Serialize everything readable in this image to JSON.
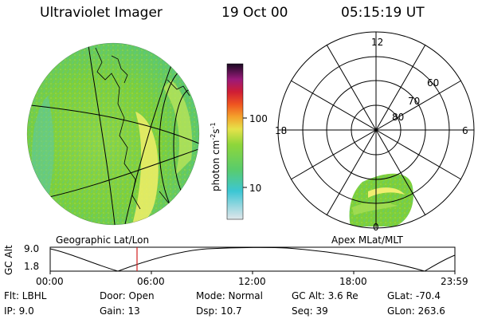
{
  "header": {
    "title": "Ultraviolet Imager",
    "date": "19 Oct 00",
    "time": "05:15:19 UT"
  },
  "colorbar": {
    "label_html": "photon cm-2s-1",
    "tick_labels": [
      "100",
      "10"
    ]
  },
  "left_map": {
    "caption": "Geographic Lat/Lon"
  },
  "polar_plot": {
    "caption": "Apex MLat/MLT",
    "mlt_labels": [
      "12",
      "18",
      "6",
      "0"
    ],
    "lat_labels": [
      "60",
      "70",
      "80"
    ]
  },
  "timeline": {
    "axis_label": "GC Alt",
    "y_labels": [
      "9.0",
      "1.8"
    ],
    "x_labels": [
      "00:00",
      "06:00",
      "12:00",
      "18:00",
      "23:59"
    ]
  },
  "info": {
    "row1": [
      "Flt: LBHL",
      "Door: Open",
      "Mode: Normal",
      "GC Alt: 3.6 Re",
      "GLat: -70.4"
    ],
    "row2": [
      "IP: 9.0",
      "Gain: 13",
      "Dsp: 10.7",
      "Seq: 39",
      "GLon: 263.6"
    ]
  },
  "colors": {
    "image_base": "#7ecf3a",
    "image_cyan": "#49c8d8",
    "image_yellow": "#f2ef62",
    "marker_red": "#d22020"
  }
}
